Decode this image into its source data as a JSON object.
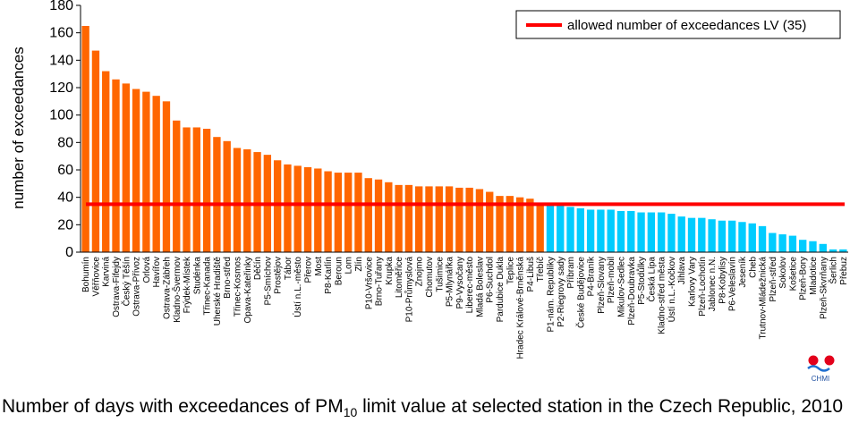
{
  "chart_data": {
    "type": "bar",
    "ylabel": "number of exceedances",
    "ylim": [
      0,
      180
    ],
    "yticks": [
      0,
      20,
      40,
      60,
      80,
      100,
      120,
      140,
      160,
      180
    ],
    "limit_value": 35,
    "legend": {
      "label": "allowed number of exceedances LV (35)",
      "position": "top-right"
    },
    "colors": {
      "above_limit": "#FF6600",
      "below_limit": "#00CCFF",
      "limit_line": "#FF0000",
      "axis": "#000000"
    },
    "categories": [
      "Bohumín",
      "Věřňovice",
      "Karviná",
      "Ostrava-Fifejdy",
      "Český Těšín",
      "Ostrava-Přívoz",
      "Orlová",
      "Havířov",
      "Ostrava-Zábřeh",
      "Kladno-Švermov",
      "Frýdek-Místek",
      "Studénka",
      "Třinec-Kanada",
      "Uherské Hradiště",
      "Brno-střed",
      "Třinec-Kosmos",
      "Opava-Kateřinky",
      "Děčín",
      "P5-Smíchov",
      "Prostějov",
      "Tábor",
      "Ústí n.L.-město",
      "Přerov",
      "Most",
      "P8-Karlín",
      "Beroun",
      "Lom",
      "Zlín",
      "P10-Vršovice",
      "Brno-Tuřany",
      "Krupka",
      "Litoměřice",
      "P10-Průmyslová",
      "Znojmo",
      "Chomutov",
      "Tušimice",
      "P5-Mlynářka",
      "P9-Vysočany",
      "Liberec-město",
      "Mladá Boleslav",
      "P6-Suchdol",
      "Pardubice Dukla",
      "Teplice",
      "Hradec Králové-Brněnská",
      "P4-Libuš",
      "Třebíč",
      "P1-nám. Republiky",
      "P2-Riegrovy sady",
      "Příbram",
      "České Budějovice",
      "P4-Braník",
      "Plzeň-Slovany",
      "Plzeň-mobil",
      "Mikulov-Sedlec",
      "Plzeň-Doubravka",
      "P5-Stodůlky",
      "Česká Lípa",
      "Kladno-střed města",
      "Ústí n.L.-Kočkov",
      "Jihlava",
      "Karlovy Vary",
      "Plzeň-Lochotín",
      "Jablonec n.N.",
      "P8-Kobylisy",
      "P6-Veleslavín",
      "Jeseník",
      "Cheb",
      "Trutnov-Mládežnická",
      "Plzeň-střed",
      "Sokolov",
      "Košetice",
      "Plzeň-Bory",
      "Mladotice",
      "Plzeň-Skvrňany",
      "Šerlich",
      "Přebuz"
    ],
    "values": [
      165,
      147,
      132,
      126,
      123,
      119,
      117,
      114,
      110,
      96,
      91,
      91,
      90,
      84,
      81,
      76,
      75,
      73,
      71,
      67,
      64,
      63,
      62,
      61,
      59,
      58,
      58,
      58,
      54,
      53,
      51,
      49,
      49,
      48,
      48,
      48,
      48,
      47,
      47,
      46,
      44,
      41,
      41,
      40,
      39,
      36,
      34,
      34,
      33,
      32,
      31,
      31,
      31,
      30,
      30,
      29,
      29,
      29,
      28,
      26,
      25,
      25,
      24,
      23,
      23,
      22,
      21,
      19,
      14,
      13,
      12,
      9,
      8,
      6,
      2,
      2
    ]
  },
  "caption": {
    "text_before": "Number of days with exceedances of PM",
    "subscript": "10",
    "text_after": " limit value at selected station in the Czech Republic, 2010"
  },
  "logo": {
    "label": "CHMI"
  }
}
